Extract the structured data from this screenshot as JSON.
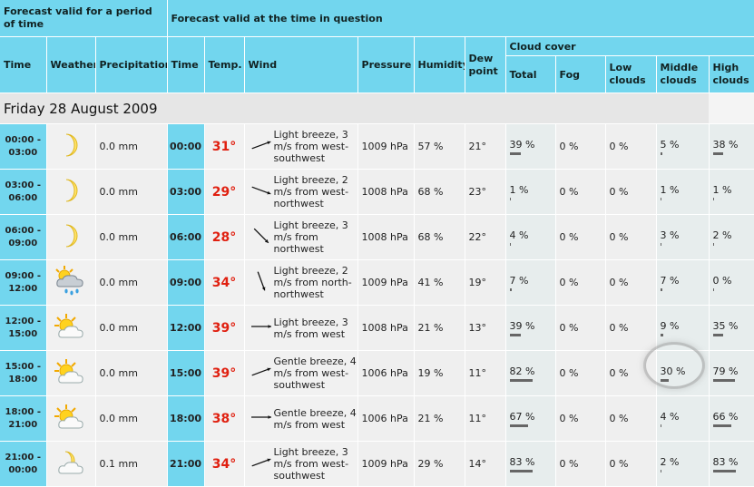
{
  "header": {
    "group_left": "Forecast valid for a period of time",
    "group_right": "Forecast valid at the time in question",
    "cloud_cover": "Cloud cover",
    "cols": {
      "time": "Time",
      "weather": "Weather",
      "precipitation": "Precipitation",
      "time2": "Time",
      "temp": "Temp.",
      "wind": "Wind",
      "pressure": "Pressure",
      "humidity": "Humidity",
      "dew_point": "Dew point",
      "total": "Total",
      "fog": "Fog",
      "low": "Low clouds",
      "middle": "Middle clouds",
      "high": "High clouds"
    }
  },
  "day_label": "Friday 28 August 2009",
  "rows": [
    {
      "period": "00:00 - 03:00",
      "icon": "moon-icon",
      "precip": "0.0 mm",
      "time": "00:00",
      "temp": "31°",
      "wind_dir_deg": 250,
      "wind": "Light breeze, 3 m/s from west-southwest",
      "pressure": "1009 hPa",
      "humidity": "57 %",
      "dew": "21°",
      "total": "39 %",
      "total_v": 39,
      "fog": "0 %",
      "low": "0 %",
      "middle": "5 %",
      "middle_v": 5,
      "high": "38 %",
      "high_v": 38
    },
    {
      "period": "03:00 - 06:00",
      "icon": "moon-icon",
      "precip": "0.0 mm",
      "time": "03:00",
      "temp": "29°",
      "wind_dir_deg": 290,
      "wind": "Light breeze, 2 m/s from west-northwest",
      "pressure": "1008 hPa",
      "humidity": "68 %",
      "dew": "23°",
      "total": "1 %",
      "total_v": 1,
      "fog": "0 %",
      "low": "0 %",
      "middle": "1 %",
      "middle_v": 1,
      "high": "1 %",
      "high_v": 1
    },
    {
      "period": "06:00 - 09:00",
      "icon": "moon-icon",
      "precip": "0.0 mm",
      "time": "06:00",
      "temp": "28°",
      "wind_dir_deg": 315,
      "wind": "Light breeze, 3 m/s from northwest",
      "pressure": "1008 hPa",
      "humidity": "68 %",
      "dew": "22°",
      "total": "4 %",
      "total_v": 4,
      "fog": "0 %",
      "low": "0 %",
      "middle": "3 %",
      "middle_v": 3,
      "high": "2 %",
      "high_v": 2
    },
    {
      "period": "09:00 - 12:00",
      "icon": "sun-cloud-rain-icon",
      "precip": "0.0 mm",
      "time": "09:00",
      "temp": "34°",
      "wind_dir_deg": 340,
      "wind": "Light breeze, 2 m/s from north-northwest",
      "pressure": "1009 hPa",
      "humidity": "41 %",
      "dew": "19°",
      "total": "7 %",
      "total_v": 7,
      "fog": "0 %",
      "low": "0 %",
      "middle": "7 %",
      "middle_v": 7,
      "high": "0 %",
      "high_v": 0
    },
    {
      "period": "12:00 - 15:00",
      "icon": "sun-cloud-icon",
      "precip": "0.0 mm",
      "time": "12:00",
      "temp": "39°",
      "wind_dir_deg": 270,
      "wind": "Light breeze, 3 m/s from west",
      "pressure": "1008 hPa",
      "humidity": "21 %",
      "dew": "13°",
      "total": "39 %",
      "total_v": 39,
      "fog": "0 %",
      "low": "0 %",
      "middle": "9 %",
      "middle_v": 9,
      "high": "35 %",
      "high_v": 35
    },
    {
      "period": "15:00 - 18:00",
      "icon": "sun-cloud-icon",
      "precip": "0.0 mm",
      "time": "15:00",
      "temp": "39°",
      "wind_dir_deg": 250,
      "wind": "Gentle breeze, 4 m/s from west-southwest",
      "pressure": "1006 hPa",
      "humidity": "19 %",
      "dew": "11°",
      "total": "82 %",
      "total_v": 82,
      "fog": "0 %",
      "low": "0 %",
      "middle": "30 %",
      "middle_v": 30,
      "high": "79 %",
      "high_v": 79
    },
    {
      "period": "18:00 - 21:00",
      "icon": "sun-cloud-icon",
      "precip": "0.0 mm",
      "time": "18:00",
      "temp": "38°",
      "wind_dir_deg": 270,
      "wind": "Gentle breeze, 4 m/s from west",
      "pressure": "1006 hPa",
      "humidity": "21 %",
      "dew": "11°",
      "total": "67 %",
      "total_v": 67,
      "fog": "0 %",
      "low": "0 %",
      "middle": "4 %",
      "middle_v": 4,
      "high": "66 %",
      "high_v": 66
    },
    {
      "period": "21:00 - 00:00",
      "icon": "moon-cloud-icon",
      "precip": "0.1 mm",
      "time": "21:00",
      "temp": "34°",
      "wind_dir_deg": 250,
      "wind": "Light breeze, 3 m/s from west-southwest",
      "pressure": "1009 hPa",
      "humidity": "29 %",
      "dew": "14°",
      "total": "83 %",
      "total_v": 83,
      "fog": "0 %",
      "low": "0 %",
      "middle": "2 %",
      "middle_v": 2,
      "high": "83 %",
      "high_v": 83
    }
  ]
}
